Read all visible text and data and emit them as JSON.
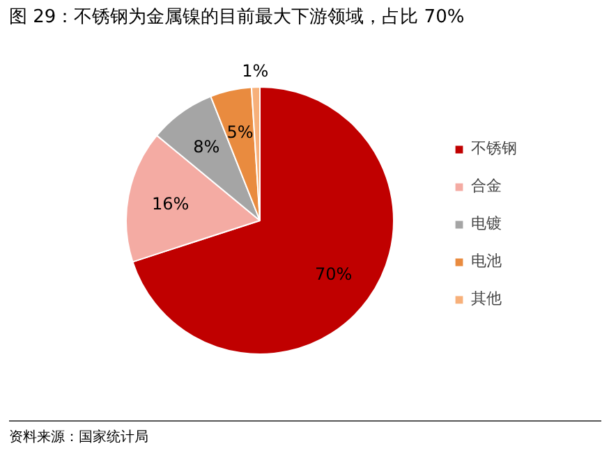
{
  "chart_data": {
    "type": "pie",
    "title": "图 29：不锈钢为金属镍的目前最大下游领域，占比 70%",
    "categories": [
      "不锈钢",
      "合金",
      "电镀",
      "电池",
      "其他"
    ],
    "values": [
      70,
      16,
      8,
      5,
      1
    ],
    "colors": [
      "#c00000",
      "#f4aba3",
      "#a5a5a5",
      "#e98b3f",
      "#f7b07a"
    ],
    "value_labels": [
      "70%",
      "16%",
      "8%",
      "5%",
      "1%"
    ],
    "legend": "right",
    "annotations": [
      "资料来源：国家统计局"
    ]
  }
}
